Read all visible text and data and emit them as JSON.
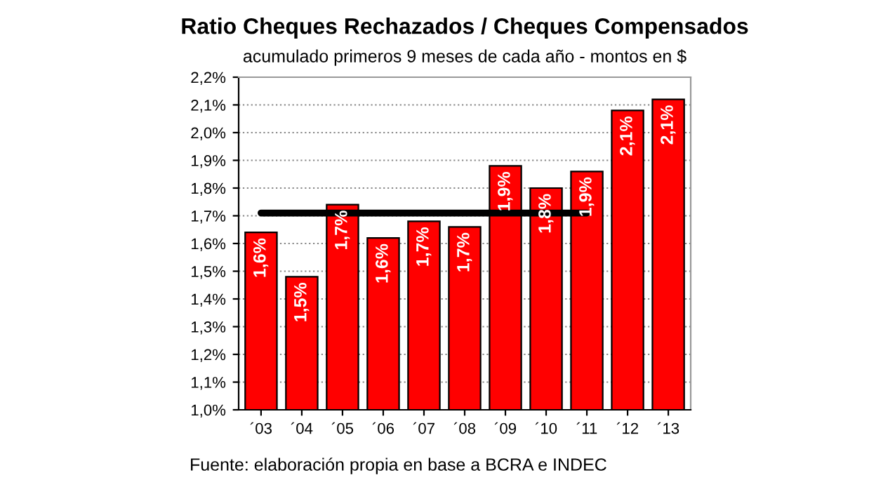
{
  "chart_data": {
    "type": "bar",
    "title": "Ratio Cheques Rechazados / Cheques Compensados",
    "subtitle": "acumulado primeros 9 meses de cada año - montos en $",
    "categories": [
      "´03",
      "´04",
      "´05",
      "´06",
      "´07",
      "´08",
      "´09",
      "´10",
      "´11",
      "´12",
      "´13"
    ],
    "series": [
      {
        "color": "#ff0000",
        "values": [
          1.64,
          1.48,
          1.74,
          1.62,
          1.68,
          1.66,
          1.88,
          1.8,
          1.86,
          2.08,
          2.12
        ],
        "value_labels": [
          "1,6%",
          "1,5%",
          "1,7%",
          "1,6%",
          "1,7%",
          "1,7%",
          "1,9%",
          "1,8%",
          "1,9%",
          "2,1%",
          "2,1%"
        ]
      },
      {
        "type": "line",
        "color": "#000000",
        "values": [
          1.71,
          1.71,
          1.71,
          1.71,
          1.71,
          1.71,
          1.71,
          1.71,
          1.71,
          null,
          null
        ]
      }
    ],
    "ylim": [
      1.0,
      2.2
    ],
    "yticks": [
      {
        "value": 1.0,
        "label": "1,0%"
      },
      {
        "value": 1.1,
        "label": "1,1%"
      },
      {
        "value": 1.2,
        "label": "1,2%"
      },
      {
        "value": 1.3,
        "label": "1,3%"
      },
      {
        "value": 1.4,
        "label": "1,4%"
      },
      {
        "value": 1.5,
        "label": "1,5%"
      },
      {
        "value": 1.6,
        "label": "1,6%"
      },
      {
        "value": 1.7,
        "label": "1,7%"
      },
      {
        "value": 1.8,
        "label": "1,8%"
      },
      {
        "value": 1.9,
        "label": "1,9%"
      },
      {
        "value": 2.0,
        "label": "2,0%"
      },
      {
        "value": 2.1,
        "label": "2,1%"
      },
      {
        "value": 2.2,
        "label": "2,2%"
      }
    ],
    "grid": "y",
    "annotations": [
      "Fuente: elaboración propia en base a BCRA e INDEC"
    ]
  }
}
